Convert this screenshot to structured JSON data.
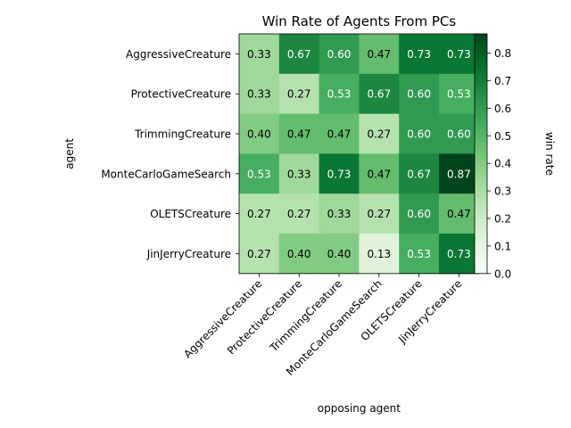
{
  "chart_data": {
    "type": "heatmap",
    "title": "Win Rate of Agents From PCs",
    "xlabel": "opposing agent",
    "ylabel": "agent",
    "rows": [
      "AggressiveCreature",
      "ProtectiveCreature",
      "TrimmingCreature",
      "MonteCarloGameSearch",
      "OLETSCreature",
      "JinJerryCreature"
    ],
    "columns": [
      "AggressiveCreature",
      "ProtectiveCreature",
      "TrimmingCreature",
      "MonteCarloGameSearch",
      "OLETSCreature",
      "JinJerryCreature"
    ],
    "values": [
      [
        0.33,
        0.67,
        0.6,
        0.47,
        0.73,
        0.73
      ],
      [
        0.33,
        0.27,
        0.53,
        0.67,
        0.6,
        0.53
      ],
      [
        0.4,
        0.47,
        0.47,
        0.27,
        0.6,
        0.6
      ],
      [
        0.53,
        0.33,
        0.73,
        0.47,
        0.67,
        0.87
      ],
      [
        0.27,
        0.27,
        0.33,
        0.27,
        0.6,
        0.47
      ],
      [
        0.27,
        0.4,
        0.4,
        0.13,
        0.53,
        0.73
      ]
    ],
    "cell_labels": [
      [
        "0.33",
        "0.67",
        "0.60",
        "0.47",
        "0.73",
        "0.73"
      ],
      [
        "0.33",
        "0.27",
        "0.53",
        "0.67",
        "0.60",
        "0.53"
      ],
      [
        "0.40",
        "0.47",
        "0.47",
        "0.27",
        "0.60",
        "0.60"
      ],
      [
        "0.53",
        "0.33",
        "0.73",
        "0.47",
        "0.67",
        "0.87"
      ],
      [
        "0.27",
        "0.27",
        "0.33",
        "0.27",
        "0.60",
        "0.47"
      ],
      [
        "0.27",
        "0.40",
        "0.40",
        "0.13",
        "0.53",
        "0.73"
      ]
    ],
    "colorbar": {
      "label": "win rate",
      "range": [
        0.0,
        0.87
      ],
      "ticks": [
        0.0,
        0.1,
        0.2,
        0.3,
        0.4,
        0.5,
        0.6,
        0.7,
        0.8
      ],
      "tick_labels": [
        "0.0",
        "0.1",
        "0.2",
        "0.3",
        "0.4",
        "0.5",
        "0.6",
        "0.7",
        "0.8"
      ],
      "colormap": "Greens",
      "colormap_stops": [
        "#f7fcf5",
        "#e5f5e0",
        "#c7e9c0",
        "#a1d99b",
        "#74c476",
        "#41ab5d",
        "#238b45",
        "#006d2c",
        "#00441b"
      ]
    },
    "label_color_light": "#ffffff",
    "label_color_dark": "#000000",
    "label_threshold": 0.5,
    "grid": false
  }
}
